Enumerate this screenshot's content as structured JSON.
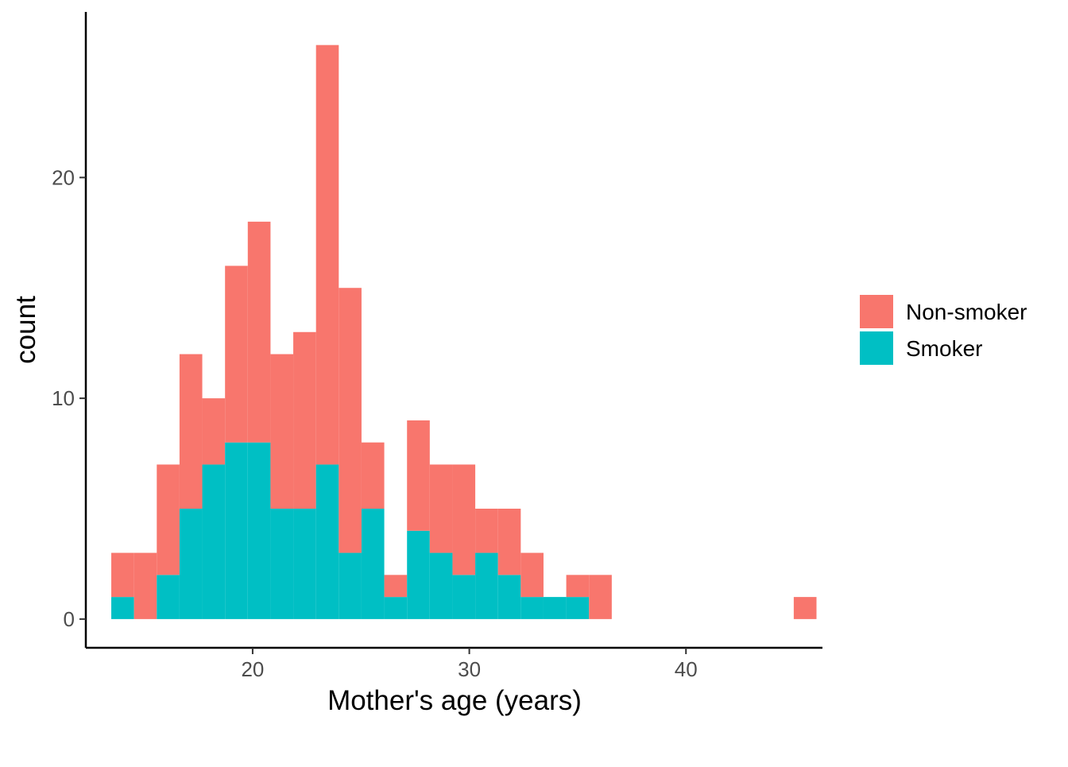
{
  "chart_data": {
    "type": "bar",
    "subtype": "stacked-histogram",
    "xlabel": "Mother's age (years)",
    "ylabel": "count",
    "xlim": [
      12.3,
      46.3
    ],
    "ylim": [
      -1.3,
      27.5
    ],
    "bin_width": 1.05,
    "x_ticks": [
      20,
      30,
      40
    ],
    "y_ticks": [
      0,
      10,
      20
    ],
    "grid": false,
    "legend": {
      "placement": "right",
      "labels": [
        "Non-smoker",
        "Smoker"
      ]
    },
    "colors": {
      "Non-smoker": "#F8766D",
      "Smoker": "#00BFC4"
    },
    "bin_centers": [
      14.0,
      15.05,
      16.1,
      17.15,
      18.2,
      19.25,
      20.3,
      21.35,
      22.4,
      23.45,
      24.5,
      25.55,
      26.6,
      27.65,
      28.7,
      29.75,
      30.8,
      31.85,
      32.9,
      33.95,
      35.0,
      36.05,
      37.1,
      38.15,
      39.2,
      40.25,
      41.3,
      42.35,
      43.4,
      44.45,
      45.5
    ],
    "series": [
      {
        "name": "Non-smoker",
        "values": [
          2,
          3,
          5,
          7,
          3,
          8,
          10,
          7,
          8,
          19,
          12,
          3,
          1,
          5,
          4,
          5,
          2,
          3,
          2,
          0,
          1,
          2,
          0,
          0,
          0,
          0,
          0,
          0,
          0,
          0,
          1
        ]
      },
      {
        "name": "Smoker",
        "values": [
          1,
          0,
          2,
          5,
          7,
          8,
          8,
          5,
          5,
          7,
          3,
          5,
          1,
          4,
          3,
          2,
          3,
          2,
          1,
          1,
          1,
          0,
          0,
          0,
          0,
          0,
          0,
          0,
          0,
          0,
          0
        ]
      }
    ]
  }
}
